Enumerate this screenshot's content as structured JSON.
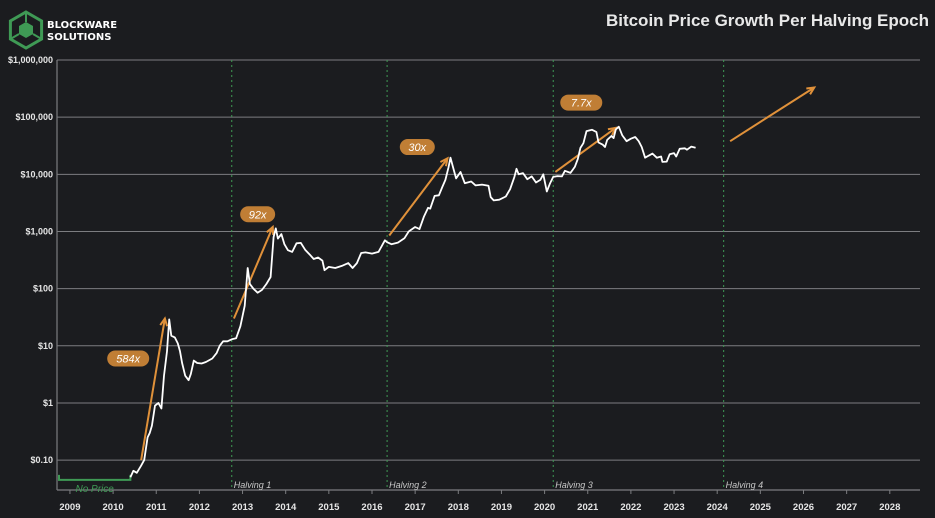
{
  "brand": {
    "line1": "BLOCKWARE",
    "line2": "SOLUTIONS",
    "logo_icon": "hexagon-cube-logo"
  },
  "colors": {
    "background": "#1b1c1f",
    "price": "#ffffff",
    "arrow": "#e0913a",
    "badge": "#c07e35",
    "halving": "#3f9a55",
    "grid": "#7c7d80",
    "tick": "#e6e6e6"
  },
  "chart_data": {
    "type": "line",
    "title": "Bitcoin Price Growth Per Halving Epoch",
    "y_scale": "log",
    "ylim": [
      0.03,
      1000000
    ],
    "xlim": [
      2008.85,
      2028.85
    ],
    "x_ticks": [
      "2009",
      "2010",
      "2011",
      "2012",
      "2013",
      "2014",
      "2015",
      "2016",
      "2017",
      "2018",
      "2019",
      "2020",
      "2021",
      "2022",
      "2023",
      "2024",
      "2025",
      "2026",
      "2027",
      "2028"
    ],
    "y_ticks": [
      {
        "label": "$1,000,000",
        "value": 1000000
      },
      {
        "label": "$100,000",
        "value": 100000
      },
      {
        "label": "$10,000",
        "value": 10000
      },
      {
        "label": "$1,000",
        "value": 1000
      },
      {
        "label": "$100",
        "value": 100
      },
      {
        "label": "$10",
        "value": 10
      },
      {
        "label": "$1",
        "value": 1
      },
      {
        "label": "$0.10",
        "value": 0.1
      }
    ],
    "halvings": [
      {
        "label": "Halving 1",
        "x": 2012.9
      },
      {
        "label": "Halving 2",
        "x": 2016.5
      },
      {
        "label": "Halving 3",
        "x": 2020.35
      },
      {
        "label": "Halving 4",
        "x": 2024.3
      }
    ],
    "no_price": {
      "label": "No Price",
      "x_start": 2008.85,
      "x_end": 2010.55,
      "y": 0.045
    },
    "series": [
      {
        "name": "BTC Price (USD)",
        "points": [
          [
            2010.55,
            0.05
          ],
          [
            2010.62,
            0.065
          ],
          [
            2010.7,
            0.06
          ],
          [
            2010.8,
            0.08
          ],
          [
            2010.87,
            0.1
          ],
          [
            2010.95,
            0.25
          ],
          [
            2011.0,
            0.3
          ],
          [
            2011.05,
            0.4
          ],
          [
            2011.12,
            0.9
          ],
          [
            2011.2,
            1.0
          ],
          [
            2011.27,
            0.8
          ],
          [
            2011.33,
            3
          ],
          [
            2011.4,
            8
          ],
          [
            2011.45,
            29
          ],
          [
            2011.5,
            15
          ],
          [
            2011.58,
            14
          ],
          [
            2011.65,
            11
          ],
          [
            2011.7,
            8
          ],
          [
            2011.75,
            5
          ],
          [
            2011.82,
            3
          ],
          [
            2011.9,
            2.5
          ],
          [
            2011.95,
            3.2
          ],
          [
            2012.02,
            5.5
          ],
          [
            2012.1,
            5
          ],
          [
            2012.2,
            4.9
          ],
          [
            2012.3,
            5.2
          ],
          [
            2012.45,
            6
          ],
          [
            2012.55,
            7.5
          ],
          [
            2012.62,
            10
          ],
          [
            2012.7,
            12
          ],
          [
            2012.8,
            12
          ],
          [
            2012.9,
            13
          ],
          [
            2013.0,
            13.5
          ],
          [
            2013.1,
            22
          ],
          [
            2013.2,
            50
          ],
          [
            2013.27,
            230
          ],
          [
            2013.32,
            120
          ],
          [
            2013.4,
            100
          ],
          [
            2013.5,
            85
          ],
          [
            2013.6,
            95
          ],
          [
            2013.7,
            120
          ],
          [
            2013.8,
            160
          ],
          [
            2013.87,
            800
          ],
          [
            2013.92,
            1130
          ],
          [
            2013.97,
            750
          ],
          [
            2014.05,
            900
          ],
          [
            2014.12,
            600
          ],
          [
            2014.2,
            470
          ],
          [
            2014.3,
            440
          ],
          [
            2014.4,
            620
          ],
          [
            2014.5,
            630
          ],
          [
            2014.6,
            480
          ],
          [
            2014.7,
            400
          ],
          [
            2014.8,
            330
          ],
          [
            2014.9,
            350
          ],
          [
            2015.0,
            310
          ],
          [
            2015.05,
            210
          ],
          [
            2015.15,
            240
          ],
          [
            2015.3,
            230
          ],
          [
            2015.45,
            250
          ],
          [
            2015.6,
            280
          ],
          [
            2015.7,
            230
          ],
          [
            2015.8,
            280
          ],
          [
            2015.9,
            420
          ],
          [
            2016.0,
            430
          ],
          [
            2016.15,
            410
          ],
          [
            2016.3,
            440
          ],
          [
            2016.45,
            700
          ],
          [
            2016.5,
            650
          ],
          [
            2016.6,
            600
          ],
          [
            2016.75,
            640
          ],
          [
            2016.9,
            760
          ],
          [
            2017.0,
            1000
          ],
          [
            2017.15,
            1200
          ],
          [
            2017.25,
            1100
          ],
          [
            2017.35,
            1800
          ],
          [
            2017.45,
            2600
          ],
          [
            2017.5,
            2500
          ],
          [
            2017.6,
            4200
          ],
          [
            2017.7,
            4300
          ],
          [
            2017.78,
            6000
          ],
          [
            2017.85,
            8000
          ],
          [
            2017.92,
            13000
          ],
          [
            2017.97,
            19500
          ],
          [
            2018.02,
            14000
          ],
          [
            2018.1,
            8500
          ],
          [
            2018.2,
            11000
          ],
          [
            2018.3,
            7000
          ],
          [
            2018.45,
            7500
          ],
          [
            2018.55,
            6400
          ],
          [
            2018.7,
            6600
          ],
          [
            2018.85,
            6300
          ],
          [
            2018.9,
            4000
          ],
          [
            2018.97,
            3500
          ],
          [
            2019.1,
            3600
          ],
          [
            2019.25,
            4100
          ],
          [
            2019.35,
            5500
          ],
          [
            2019.45,
            9000
          ],
          [
            2019.5,
            12500
          ],
          [
            2019.55,
            10000
          ],
          [
            2019.65,
            10500
          ],
          [
            2019.75,
            8200
          ],
          [
            2019.85,
            9200
          ],
          [
            2019.95,
            7200
          ],
          [
            2020.05,
            8000
          ],
          [
            2020.12,
            10000
          ],
          [
            2020.2,
            5000
          ],
          [
            2020.27,
            6800
          ],
          [
            2020.35,
            9000
          ],
          [
            2020.45,
            9300
          ],
          [
            2020.55,
            9200
          ],
          [
            2020.62,
            11500
          ],
          [
            2020.75,
            10600
          ],
          [
            2020.85,
            13500
          ],
          [
            2020.92,
            18500
          ],
          [
            2020.98,
            29000
          ],
          [
            2021.05,
            35000
          ],
          [
            2021.12,
            57000
          ],
          [
            2021.25,
            60000
          ],
          [
            2021.35,
            55000
          ],
          [
            2021.4,
            36000
          ],
          [
            2021.5,
            33000
          ],
          [
            2021.55,
            30000
          ],
          [
            2021.6,
            40000
          ],
          [
            2021.7,
            47000
          ],
          [
            2021.75,
            43000
          ],
          [
            2021.8,
            61000
          ],
          [
            2021.87,
            68000
          ],
          [
            2021.95,
            48000
          ],
          [
            2022.05,
            38000
          ],
          [
            2022.15,
            42000
          ],
          [
            2022.25,
            45000
          ],
          [
            2022.33,
            38000
          ],
          [
            2022.4,
            30000
          ],
          [
            2022.48,
            19500
          ],
          [
            2022.55,
            21000
          ],
          [
            2022.65,
            23000
          ],
          [
            2022.75,
            19500
          ],
          [
            2022.85,
            20500
          ],
          [
            2022.88,
            16500
          ],
          [
            2022.98,
            16700
          ],
          [
            2023.05,
            22500
          ],
          [
            2023.15,
            23500
          ],
          [
            2023.2,
            20500
          ],
          [
            2023.28,
            28000
          ],
          [
            2023.4,
            28500
          ],
          [
            2023.45,
            27000
          ],
          [
            2023.55,
            30500
          ],
          [
            2023.65,
            29200
          ]
        ]
      }
    ],
    "arrows": [
      {
        "from": [
          2010.8,
          0.1
        ],
        "to": [
          2011.35,
          30
        ]
      },
      {
        "from": [
          2012.95,
          30
        ],
        "to": [
          2013.85,
          1200
        ]
      },
      {
        "from": [
          2016.55,
          850
        ],
        "to": [
          2017.9,
          19000
        ]
      },
      {
        "from": [
          2020.4,
          11000
        ],
        "to": [
          2021.8,
          65000
        ]
      },
      {
        "from": [
          2024.45,
          38000
        ],
        "to": [
          2026.4,
          330000
        ]
      }
    ],
    "multipliers": [
      {
        "label": "584x",
        "x": 2010.5,
        "y": 6
      },
      {
        "label": "92x",
        "x": 2013.5,
        "y": 2000
      },
      {
        "label": "30x",
        "x": 2017.2,
        "y": 30000
      },
      {
        "label": "7.7x",
        "x": 2021.0,
        "y": 180000
      }
    ]
  }
}
